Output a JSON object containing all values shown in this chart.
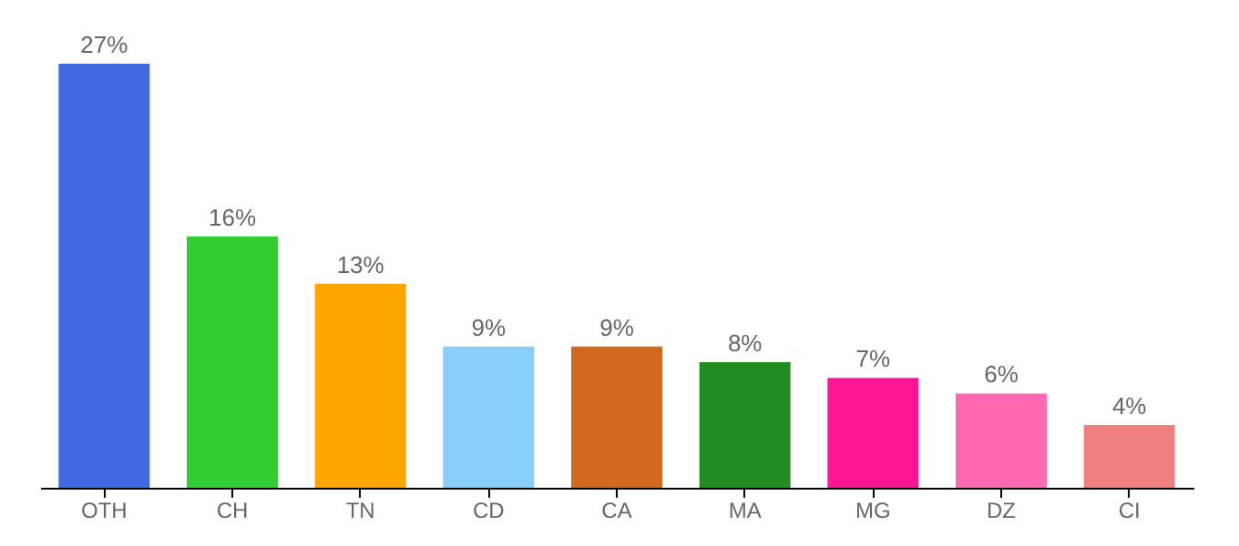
{
  "chart_data": {
    "type": "bar",
    "categories": [
      "OTH",
      "CH",
      "TN",
      "CD",
      "CA",
      "MA",
      "MG",
      "DZ",
      "CI"
    ],
    "values": [
      27,
      16,
      13,
      9,
      9,
      8,
      7,
      6,
      4
    ],
    "value_labels": [
      "27%",
      "16%",
      "13%",
      "9%",
      "9%",
      "8%",
      "7%",
      "6%",
      "4%"
    ],
    "colors": [
      "#4169e1",
      "#32cd32",
      "#ffa500",
      "#87cefa",
      "#d2691e",
      "#228b22",
      "#ff1493",
      "#ff69b4",
      "#f08080"
    ]
  }
}
